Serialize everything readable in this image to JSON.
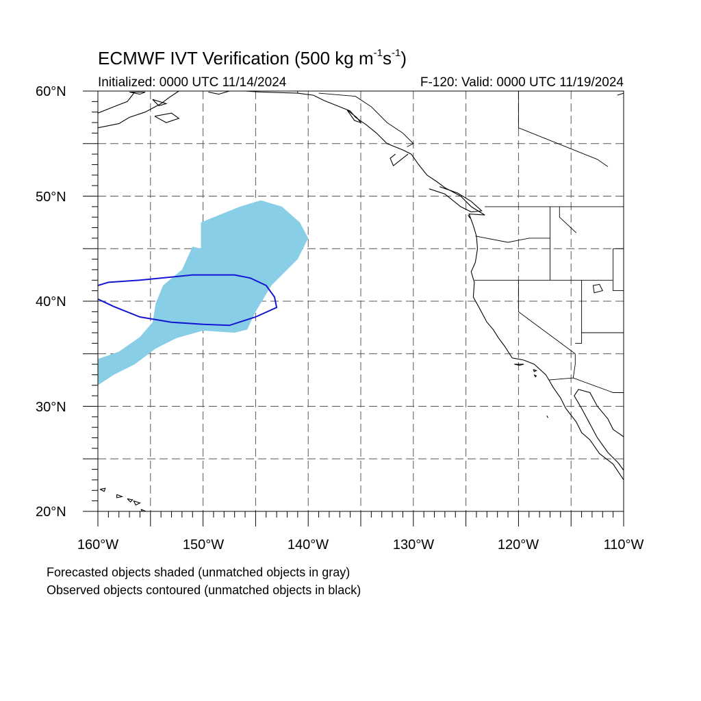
{
  "title": {
    "main": "ECMWF IVT Verification (500 kg m",
    "exp1": "-1",
    "mid": "s",
    "exp2": "-1",
    "close": ")"
  },
  "subtitle": {
    "initialized": "Initialized: 0000 UTC 11/14/2024",
    "valid": "F-120: Valid: 0000 UTC 11/19/2024"
  },
  "lat_labels": [
    "60°N",
    "50°N",
    "40°N",
    "30°N",
    "20°N"
  ],
  "lon_labels": [
    "160°W",
    "150°W",
    "140°W",
    "130°W",
    "120°W",
    "110°W"
  ],
  "notes": {
    "line1": "Forecasted objects shaded (unmatched objects in gray)",
    "line2": "Observed objects contoured (unmatched objects in black)"
  },
  "map_extent": {
    "lon_min": -160,
    "lon_max": -110,
    "lat_min": 20,
    "lat_max": 60
  },
  "colors": {
    "forecast_fill": "#87CEE6",
    "observed_contour": "#1414D2",
    "gridline": "#555555",
    "coast": "#000000"
  },
  "forecast_object": [
    [
      -160,
      34.5
    ],
    [
      -158,
      35.2
    ],
    [
      -156,
      36.6
    ],
    [
      -154.8,
      38.0
    ],
    [
      -154.5,
      39.8
    ],
    [
      -153.8,
      41.5
    ],
    [
      -152.0,
      43.0
    ],
    [
      -151.0,
      45.2
    ],
    [
      -150.2,
      45.0
    ],
    [
      -150.2,
      47.5
    ],
    [
      -146.5,
      49.0
    ],
    [
      -144.5,
      49.6
    ],
    [
      -142.5,
      49.0
    ],
    [
      -140.8,
      47.5
    ],
    [
      -140.0,
      46.0
    ],
    [
      -141.0,
      44.0
    ],
    [
      -143.5,
      41.5
    ],
    [
      -145.0,
      39.0
    ],
    [
      -145.8,
      37.3
    ],
    [
      -147.0,
      37.0
    ],
    [
      -150.0,
      37.2
    ],
    [
      -152.5,
      36.5
    ],
    [
      -154.5,
      35.5
    ],
    [
      -156.5,
      34.0
    ],
    [
      -158.5,
      33.0
    ],
    [
      -160,
      32.0
    ]
  ],
  "observed_object": [
    [
      -160,
      41.5
    ],
    [
      -159.0,
      41.8
    ],
    [
      -156.0,
      42.0
    ],
    [
      -151.0,
      42.5
    ],
    [
      -147.0,
      42.5
    ],
    [
      -145.5,
      42.2
    ],
    [
      -144.0,
      41.5
    ],
    [
      -143.2,
      40.4
    ],
    [
      -143.0,
      39.4
    ],
    [
      -145.0,
      38.5
    ],
    [
      -147.5,
      37.7
    ],
    [
      -150.0,
      37.8
    ],
    [
      -153.0,
      38.0
    ],
    [
      -156.0,
      38.5
    ],
    [
      -158.5,
      39.5
    ],
    [
      -160,
      40.2
    ]
  ],
  "coastlines": [
    [
      [
        -160,
        57.9
      ],
      [
        -158.5,
        58.5
      ],
      [
        -157.2,
        59.0
      ],
      [
        -156.5,
        59.9
      ]
    ],
    [
      [
        -160,
        56.5
      ],
      [
        -158.0,
        56.9
      ],
      [
        -157.0,
        57.5
      ],
      [
        -155.5,
        58.0
      ],
      [
        -154.0,
        58.8
      ],
      [
        -153.2,
        59.4
      ],
      [
        -152.3,
        60.0
      ]
    ],
    [
      [
        -149.5,
        59.9
      ],
      [
        -148.5,
        59.7
      ],
      [
        -147.5,
        60.0
      ]
    ],
    [
      [
        -146,
        60.0
      ],
      [
        -144.5,
        59.9
      ],
      [
        -141.0,
        59.8
      ],
      [
        -139.5,
        59.6
      ],
      [
        -138.5,
        59.1
      ],
      [
        -137.0,
        58.5
      ],
      [
        -136.0,
        58.1
      ],
      [
        -135.5,
        57.5
      ],
      [
        -134.5,
        56.8
      ],
      [
        -133.5,
        56.0
      ],
      [
        -132.5,
        55.0
      ],
      [
        -131.0,
        54.4
      ],
      [
        -130.2,
        54.0
      ],
      [
        -129.5,
        53.0
      ],
      [
        -128.7,
        52.0
      ],
      [
        -127.8,
        51.4
      ],
      [
        -127.0,
        50.8
      ],
      [
        -125.5,
        50.0
      ],
      [
        -124.5,
        49.0
      ],
      [
        -123.2,
        48.2
      ],
      [
        -124.7,
        48.3
      ],
      [
        -124.3,
        47.2
      ],
      [
        -124.0,
        46.2
      ],
      [
        -123.9,
        45.0
      ],
      [
        -124.1,
        43.7
      ],
      [
        -124.5,
        42.8
      ],
      [
        -124.2,
        41.8
      ],
      [
        -124.3,
        40.4
      ],
      [
        -123.8,
        39.5
      ],
      [
        -123.0,
        38.0
      ],
      [
        -122.4,
        37.3
      ],
      [
        -121.9,
        36.5
      ],
      [
        -121.3,
        35.7
      ],
      [
        -120.6,
        34.6
      ],
      [
        -119.5,
        34.4
      ],
      [
        -118.5,
        34.0
      ],
      [
        -117.4,
        33.0
      ],
      [
        -117.1,
        32.5
      ],
      [
        -116.7,
        31.8
      ],
      [
        -116.0,
        30.8
      ],
      [
        -115.5,
        29.8
      ],
      [
        -114.5,
        28.5
      ],
      [
        -114.0,
        27.5
      ],
      [
        -113.2,
        26.8
      ],
      [
        -112.3,
        25.5
      ],
      [
        -111.0,
        24.5
      ],
      [
        -110.0,
        23.0
      ]
    ],
    [
      [
        -110,
        23.9
      ],
      [
        -110.5,
        24.6
      ],
      [
        -111.5,
        25.6
      ],
      [
        -112.5,
        27.0
      ],
      [
        -113.3,
        28.5
      ],
      [
        -114.0,
        29.8
      ],
      [
        -114.7,
        31.0
      ],
      [
        -114.3,
        31.6
      ],
      [
        -113.2,
        31.3
      ],
      [
        -112.5,
        30.0
      ],
      [
        -111.5,
        28.8
      ],
      [
        -111.0,
        27.8
      ],
      [
        -110.0,
        27.1
      ]
    ],
    [
      [
        -130.5,
        54.0
      ],
      [
        -131.9,
        52.9
      ],
      [
        -132.2,
        53.6
      ],
      [
        -131.7,
        54.0
      ]
    ],
    [
      [
        -128.5,
        50.7
      ],
      [
        -127.0,
        50.2
      ],
      [
        -125.5,
        49.0
      ],
      [
        -124.5,
        48.5
      ],
      [
        -123.5,
        48.6
      ],
      [
        -124.5,
        49.5
      ],
      [
        -125.8,
        50.3
      ],
      [
        -127.5,
        50.9
      ]
    ]
  ],
  "borders": [
    [
      [
        -141.0,
        60.0
      ],
      [
        -141.0,
        59.8
      ]
    ],
    [
      [
        -139.0,
        59.8
      ],
      [
        -135.5,
        59.5
      ],
      [
        -134.0,
        58.5
      ],
      [
        -132.5,
        57.0
      ],
      [
        -131.0,
        56.0
      ],
      [
        -130.0,
        55.0
      ],
      [
        -130.6,
        54.7
      ]
    ],
    [
      [
        -123.2,
        49.0
      ],
      [
        -110.0,
        49.0
      ]
    ],
    [
      [
        -124.1,
        46.2
      ],
      [
        -121.0,
        45.6
      ],
      [
        -119.0,
        46.0
      ],
      [
        -117.0,
        46.0
      ]
    ],
    [
      [
        -124.2,
        42.0
      ],
      [
        -111.0,
        42.0
      ]
    ],
    [
      [
        -117.0,
        49.0
      ],
      [
        -117.0,
        46.0
      ],
      [
        -117.0,
        42.0
      ]
    ],
    [
      [
        -120.0,
        42.0
      ],
      [
        -120.0,
        39.0
      ],
      [
        -114.6,
        35.0
      ]
    ],
    [
      [
        -114.6,
        35.0
      ],
      [
        -114.6,
        34.0
      ],
      [
        -114.8,
        32.7
      ]
    ],
    [
      [
        -117.1,
        32.5
      ],
      [
        -114.8,
        32.7
      ],
      [
        -111.0,
        31.3
      ],
      [
        -110.0,
        31.3
      ]
    ],
    [
      [
        -114.0,
        42.0
      ],
      [
        -114.0,
        37.0
      ],
      [
        -114.0,
        36.0
      ],
      [
        -114.6,
        36.0
      ]
    ],
    [
      [
        -114.0,
        37.0
      ],
      [
        -110.0,
        37.0
      ]
    ],
    [
      [
        -111.0,
        45.0
      ],
      [
        -111.0,
        42.0
      ],
      [
        -111.0,
        41.0
      ],
      [
        -110.0,
        41.0
      ]
    ],
    [
      [
        -116.1,
        49.0
      ],
      [
        -116.1,
        48.0
      ],
      [
        -114.5,
        46.5
      ]
    ],
    [
      [
        -120.0,
        60.0
      ],
      [
        -120.0,
        56.5
      ],
      [
        -117.5,
        55.5
      ],
      [
        -115.0,
        54.5
      ],
      [
        -112.5,
        53.5
      ],
      [
        -111.5,
        52.8
      ]
    ],
    [
      [
        -110.0,
        45.0
      ],
      [
        -111.0,
        45.0
      ]
    ]
  ],
  "lakes": [
    [
      [
        -112.9,
        41.5
      ],
      [
        -112.3,
        41.6
      ],
      [
        -112.0,
        41.0
      ],
      [
        -112.8,
        40.8
      ],
      [
        -112.9,
        41.5
      ]
    ]
  ],
  "islands": [
    [
      [
        -159.8,
        22.1
      ],
      [
        -159.3,
        22.2
      ],
      [
        -159.4,
        21.9
      ],
      [
        -159.8,
        22.1
      ]
    ],
    [
      [
        -158.2,
        21.6
      ],
      [
        -157.7,
        21.4
      ],
      [
        -158.2,
        21.3
      ],
      [
        -158.2,
        21.6
      ]
    ],
    [
      [
        -157.2,
        21.2
      ],
      [
        -156.7,
        21.1
      ],
      [
        -156.9,
        20.9
      ],
      [
        -157.2,
        21.2
      ]
    ],
    [
      [
        -156.6,
        21.0
      ],
      [
        -156.0,
        20.8
      ],
      [
        -156.4,
        20.6
      ],
      [
        -156.6,
        21.0
      ]
    ],
    [
      [
        -155.9,
        20.2
      ],
      [
        -155.0,
        19.8
      ],
      [
        -155.5,
        19.5
      ],
      [
        -155.9,
        20.2
      ]
    ],
    [
      [
        -120.4,
        34.0
      ],
      [
        -119.5,
        34.0
      ],
      [
        -119.9,
        33.9
      ],
      [
        -120.4,
        34.0
      ]
    ],
    [
      [
        -118.6,
        33.5
      ],
      [
        -118.3,
        33.4
      ],
      [
        -118.5,
        33.3
      ],
      [
        -118.6,
        33.5
      ]
    ],
    [
      [
        -118.5,
        33.0
      ],
      [
        -118.3,
        32.9
      ],
      [
        -118.4,
        32.8
      ],
      [
        -118.5,
        33.0
      ]
    ],
    [
      [
        -157.0,
        59.9
      ],
      [
        -155.5,
        59.9
      ],
      [
        -156.0,
        59.7
      ],
      [
        -157.0,
        59.9
      ]
    ],
    [
      [
        -154.8,
        59.2
      ],
      [
        -153.5,
        58.8
      ],
      [
        -154.2,
        58.6
      ],
      [
        -154.8,
        59.2
      ]
    ],
    [
      [
        -154.6,
        57.6
      ],
      [
        -153.0,
        57.9
      ],
      [
        -152.3,
        57.4
      ],
      [
        -153.5,
        57.0
      ],
      [
        -154.6,
        57.6
      ]
    ],
    [
      [
        -136.3,
        58.2
      ],
      [
        -135.4,
        57.5
      ],
      [
        -135.0,
        57.0
      ],
      [
        -135.6,
        57.2
      ],
      [
        -136.3,
        58.2
      ]
    ],
    [
      [
        -110.6,
        59.6
      ],
      [
        -110.0,
        59.8
      ]
    ],
    [
      [
        -117.3,
        29.1
      ],
      [
        -117.2,
        28.9
      ]
    ],
    [
      [
        -124.8,
        48.2
      ],
      [
        -124.6,
        47.9
      ]
    ]
  ]
}
